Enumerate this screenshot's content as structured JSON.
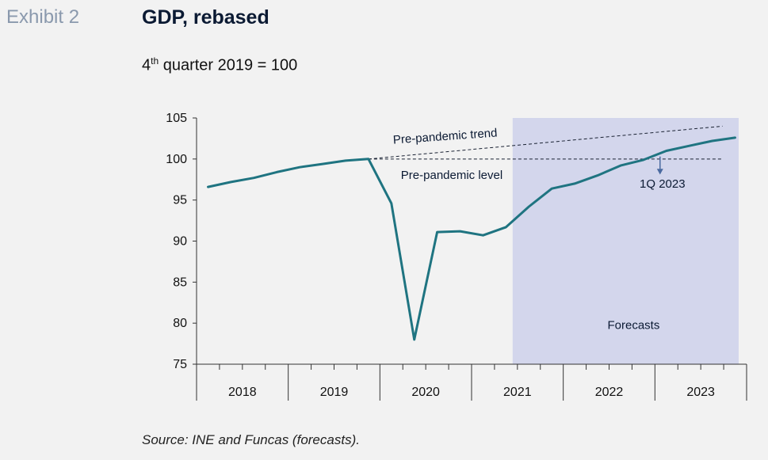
{
  "header": {
    "exhibit": "Exhibit 2",
    "title": "GDP, rebased",
    "subtitle_base": "4",
    "subtitle_sup": "th",
    "subtitle_rest": " quarter 2019 = 100"
  },
  "source": "Source: INE and Funcas (forecasts).",
  "colors": {
    "line": "#1f7481",
    "shade": "#d3d6ec",
    "dash": "#1a2233"
  },
  "chart_data": {
    "type": "line",
    "title": "GDP, rebased",
    "subtitle": "4th quarter 2019 = 100",
    "ylim": [
      75,
      105
    ],
    "yticks": [
      75,
      80,
      85,
      90,
      95,
      100,
      105
    ],
    "years": [
      "2018",
      "2019",
      "2020",
      "2021",
      "2022",
      "2023"
    ],
    "quarters": [
      "2018Q1",
      "2018Q2",
      "2018Q3",
      "2018Q4",
      "2019Q1",
      "2019Q2",
      "2019Q3",
      "2019Q4",
      "2020Q1",
      "2020Q2",
      "2020Q3",
      "2020Q4",
      "2021Q1",
      "2021Q2",
      "2021Q3",
      "2021Q4",
      "2022Q1",
      "2022Q2",
      "2022Q3",
      "2022Q4",
      "2023Q1",
      "2023Q2",
      "2023Q3",
      "2023Q4"
    ],
    "series": [
      {
        "values": [
          96.6,
          97.2,
          97.7,
          98.4,
          99.0,
          99.4,
          99.8,
          100.0,
          94.6,
          78.0,
          91.1,
          91.2,
          90.7,
          91.7,
          94.2,
          96.4,
          97.0,
          98.0,
          99.2,
          99.9,
          101.0,
          101.6,
          102.2,
          102.6
        ]
      }
    ],
    "reference_lines": [
      {
        "label": "Pre-pandemic trend",
        "from": [
          "2019Q4",
          100.0
        ],
        "to": [
          "2023Q4",
          104.0
        ]
      },
      {
        "label": "Pre-pandemic level",
        "from": [
          "2019Q4",
          100.0
        ],
        "to": [
          "2023Q4",
          100.0
        ]
      }
    ],
    "shaded_region": {
      "label": "Forecasts",
      "from": "2021Q3",
      "to": "2023Q4"
    },
    "annotations": [
      {
        "text": "1Q 2023",
        "at": "2023Q1"
      }
    ],
    "grid": false,
    "legend": "none"
  }
}
